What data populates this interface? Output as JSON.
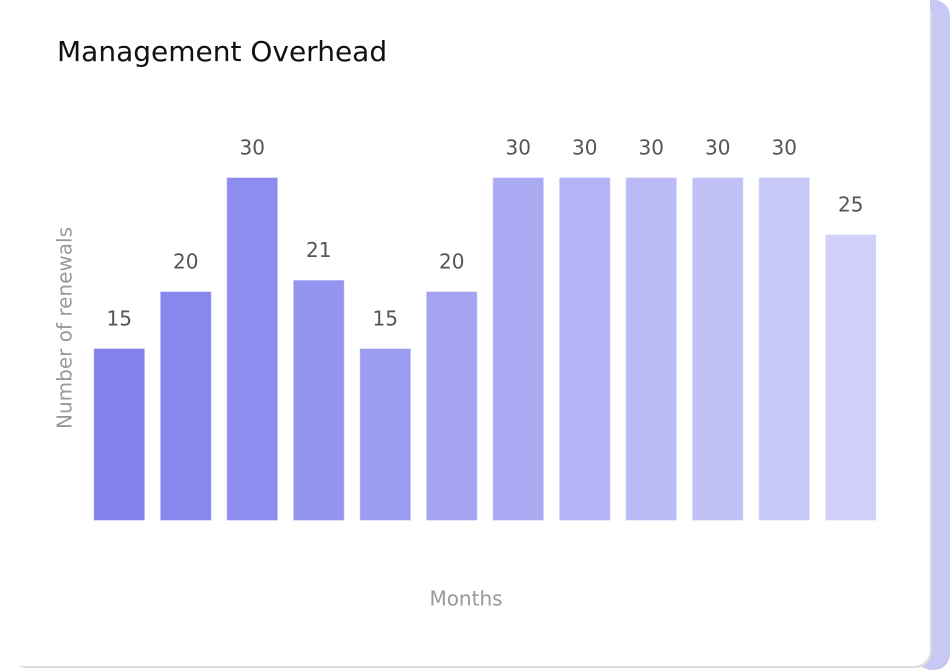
{
  "chart_data": {
    "type": "bar",
    "title": "Management Overhead",
    "ylabel": "Number of renewals",
    "xlabel": "Months",
    "categories": [
      null,
      null,
      null,
      null,
      null,
      null,
      null,
      null,
      null,
      null,
      null,
      null
    ],
    "values": [
      15,
      20,
      30,
      21,
      15,
      20,
      30,
      30,
      30,
      30,
      30,
      25
    ],
    "colors": [
      "#8282ed",
      "#8787ee",
      "#8d8def",
      "#9595f0",
      "#9c9cf1",
      "#a3a3f2",
      "#aaaaf3",
      "#b3b3f5",
      "#babaf6",
      "#c1c1f7",
      "#c8c8f8",
      "#d0d0f9"
    ],
    "ylim": [
      0,
      30
    ]
  }
}
